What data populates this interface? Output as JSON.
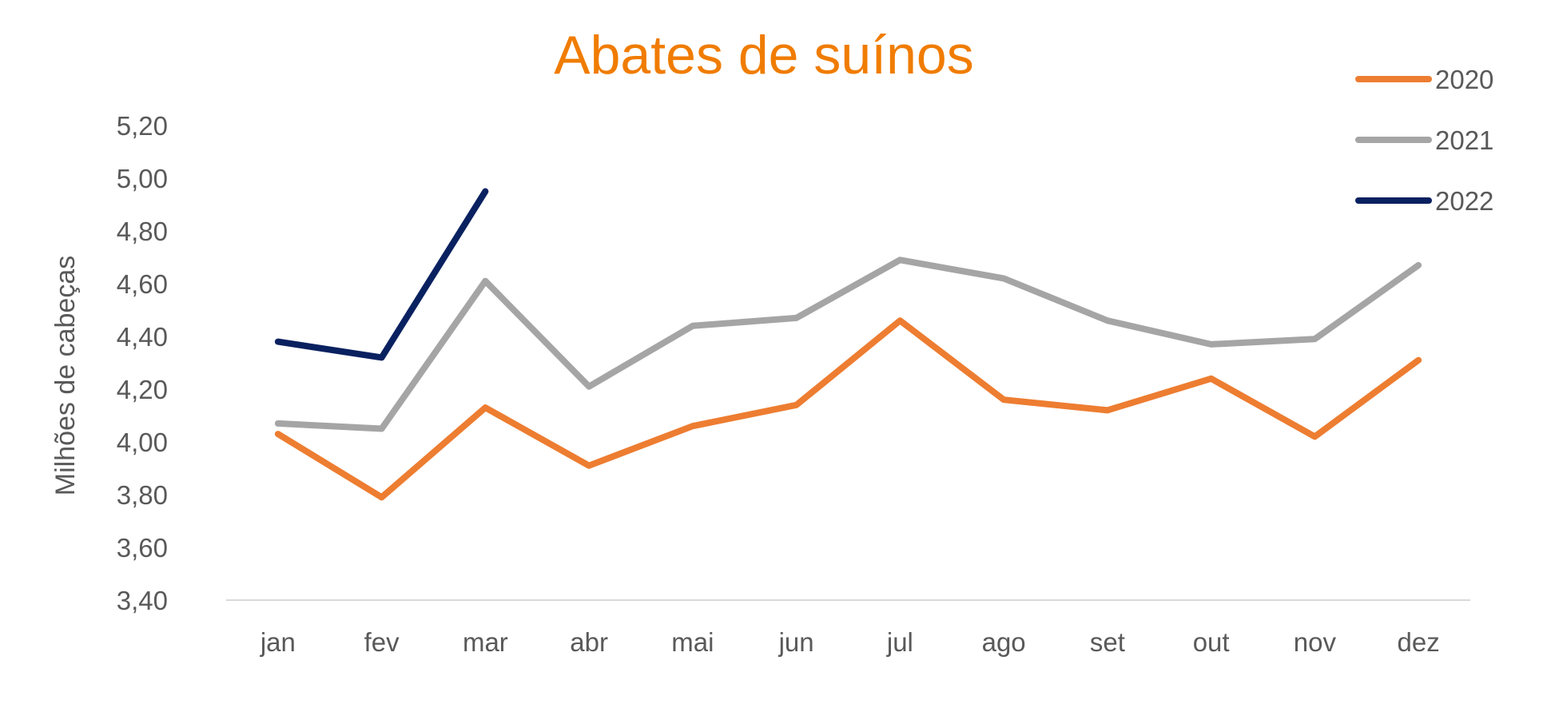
{
  "chart_data": {
    "type": "line",
    "title": "Abates de suínos",
    "xlabel": "",
    "ylabel": "Milhões de cabeças",
    "categories": [
      "jan",
      "fev",
      "mar",
      "abr",
      "mai",
      "jun",
      "jul",
      "ago",
      "set",
      "out",
      "nov",
      "dez"
    ],
    "ylim": [
      3.4,
      5.2
    ],
    "yticks": [
      "3,40",
      "3,60",
      "3,80",
      "4,00",
      "4,20",
      "4,40",
      "4,60",
      "4,80",
      "5,00",
      "5,20"
    ],
    "grid": false,
    "legend_position": "top-right",
    "series": [
      {
        "name": "2020",
        "color": "#ED7D31",
        "values": [
          4.03,
          3.79,
          4.13,
          3.91,
          4.06,
          4.14,
          4.46,
          4.16,
          4.12,
          4.24,
          4.02,
          4.31
        ]
      },
      {
        "name": "2021",
        "color": "#A5A5A5",
        "values": [
          4.07,
          4.05,
          4.61,
          4.21,
          4.44,
          4.47,
          4.69,
          4.62,
          4.46,
          4.37,
          4.39,
          4.67
        ]
      },
      {
        "name": "2022",
        "color": "#0A2160",
        "values": [
          4.38,
          4.32,
          4.95,
          null,
          null,
          null,
          null,
          null,
          null,
          null,
          null,
          null
        ]
      }
    ]
  }
}
